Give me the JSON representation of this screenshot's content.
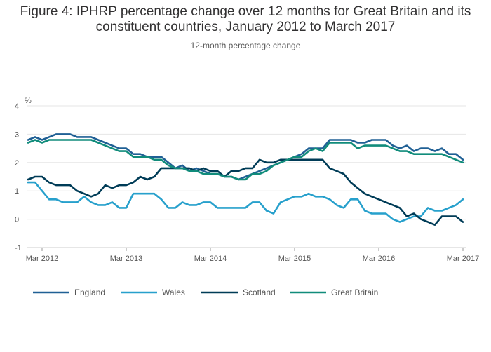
{
  "title": "Figure 4: IPHRP percentage change over 12 months for Great Britain and its constituent countries, January 2012 to March 2017",
  "subtitle": "12-month percentage change",
  "chart_data": {
    "type": "line",
    "title": "Figure 4: IPHRP percentage change over 12 months for Great Britain and its constituent countries, January 2012 to March 2017",
    "subtitle": "12-month percentage change",
    "ylabel": "%",
    "xlabel": "",
    "ylim": [
      -1,
      4
    ],
    "yticks": [
      "4",
      "3",
      "2",
      "1",
      "0",
      "-1"
    ],
    "xticks": [
      "Mar 2012",
      "Mar 2013",
      "Mar 2014",
      "Mar 2015",
      "Mar 2016",
      "Mar 2017"
    ],
    "grid": true,
    "legend_position": "bottom",
    "x": [
      "Jan 2012",
      "Feb 2012",
      "Mar 2012",
      "Apr 2012",
      "May 2012",
      "Jun 2012",
      "Jul 2012",
      "Aug 2012",
      "Sep 2012",
      "Oct 2012",
      "Nov 2012",
      "Dec 2012",
      "Jan 2013",
      "Feb 2013",
      "Mar 2013",
      "Apr 2013",
      "May 2013",
      "Jun 2013",
      "Jul 2013",
      "Aug 2013",
      "Sep 2013",
      "Oct 2013",
      "Nov 2013",
      "Dec 2013",
      "Jan 2014",
      "Feb 2014",
      "Mar 2014",
      "Apr 2014",
      "May 2014",
      "Jun 2014",
      "Jul 2014",
      "Aug 2014",
      "Sep 2014",
      "Oct 2014",
      "Nov 2014",
      "Dec 2014",
      "Jan 2015",
      "Feb 2015",
      "Mar 2015",
      "Apr 2015",
      "May 2015",
      "Jun 2015",
      "Jul 2015",
      "Aug 2015",
      "Sep 2015",
      "Oct 2015",
      "Nov 2015",
      "Dec 2015",
      "Jan 2016",
      "Feb 2016",
      "Mar 2016",
      "Apr 2016",
      "May 2016",
      "Jun 2016",
      "Jul 2016",
      "Aug 2016",
      "Sep 2016",
      "Oct 2016",
      "Nov 2016",
      "Dec 2016",
      "Jan 2017",
      "Feb 2017",
      "Mar 2017"
    ],
    "series": [
      {
        "name": "England",
        "color": "#206095",
        "values": [
          2.8,
          2.9,
          2.8,
          2.9,
          3.0,
          3.0,
          3.0,
          2.9,
          2.9,
          2.9,
          2.8,
          2.7,
          2.6,
          2.5,
          2.5,
          2.3,
          2.3,
          2.2,
          2.2,
          2.2,
          2.0,
          1.8,
          1.9,
          1.7,
          1.8,
          1.7,
          1.6,
          1.6,
          1.5,
          1.5,
          1.4,
          1.5,
          1.6,
          1.7,
          1.8,
          1.9,
          2.0,
          2.1,
          2.2,
          2.3,
          2.5,
          2.5,
          2.5,
          2.8,
          2.8,
          2.8,
          2.8,
          2.7,
          2.7,
          2.8,
          2.8,
          2.8,
          2.6,
          2.5,
          2.6,
          2.4,
          2.5,
          2.5,
          2.4,
          2.5,
          2.3,
          2.3,
          2.1
        ]
      },
      {
        "name": "Wales",
        "color": "#27a0cc",
        "values": [
          1.3,
          1.3,
          1.0,
          0.7,
          0.7,
          0.6,
          0.6,
          0.6,
          0.8,
          0.6,
          0.5,
          0.5,
          0.6,
          0.4,
          0.4,
          0.9,
          0.9,
          0.9,
          0.9,
          0.7,
          0.4,
          0.4,
          0.6,
          0.5,
          0.5,
          0.6,
          0.6,
          0.4,
          0.4,
          0.4,
          0.4,
          0.4,
          0.6,
          0.6,
          0.3,
          0.2,
          0.6,
          0.7,
          0.8,
          0.8,
          0.9,
          0.8,
          0.8,
          0.7,
          0.5,
          0.4,
          0.7,
          0.7,
          0.3,
          0.2,
          0.2,
          0.2,
          0.0,
          -0.1,
          0.0,
          0.1,
          0.1,
          0.4,
          0.3,
          0.3,
          0.4,
          0.5,
          0.7
        ]
      },
      {
        "name": "Scotland",
        "color": "#003c57",
        "values": [
          1.4,
          1.5,
          1.5,
          1.3,
          1.2,
          1.2,
          1.2,
          1.0,
          0.9,
          0.8,
          0.9,
          1.2,
          1.1,
          1.2,
          1.2,
          1.3,
          1.5,
          1.4,
          1.5,
          1.8,
          1.8,
          1.8,
          1.8,
          1.8,
          1.7,
          1.8,
          1.7,
          1.7,
          1.5,
          1.7,
          1.7,
          1.8,
          1.8,
          2.1,
          2.0,
          2.0,
          2.1,
          2.1,
          2.1,
          2.1,
          2.1,
          2.1,
          2.1,
          1.8,
          1.7,
          1.6,
          1.3,
          1.1,
          0.9,
          0.8,
          0.7,
          0.6,
          0.5,
          0.4,
          0.1,
          0.2,
          0.0,
          -0.1,
          -0.2,
          0.1,
          0.1,
          0.1,
          -0.1
        ]
      },
      {
        "name": "Great Britain",
        "color": "#118c7b",
        "values": [
          2.7,
          2.8,
          2.7,
          2.8,
          2.8,
          2.8,
          2.8,
          2.8,
          2.8,
          2.8,
          2.7,
          2.6,
          2.5,
          2.4,
          2.4,
          2.2,
          2.2,
          2.2,
          2.1,
          2.1,
          1.9,
          1.8,
          1.8,
          1.7,
          1.7,
          1.6,
          1.6,
          1.6,
          1.5,
          1.5,
          1.4,
          1.4,
          1.6,
          1.6,
          1.7,
          1.9,
          2.0,
          2.1,
          2.2,
          2.2,
          2.4,
          2.5,
          2.4,
          2.7,
          2.7,
          2.7,
          2.7,
          2.5,
          2.6,
          2.6,
          2.6,
          2.6,
          2.5,
          2.4,
          2.4,
          2.3,
          2.3,
          2.3,
          2.3,
          2.3,
          2.2,
          2.1,
          2.0
        ]
      }
    ]
  }
}
